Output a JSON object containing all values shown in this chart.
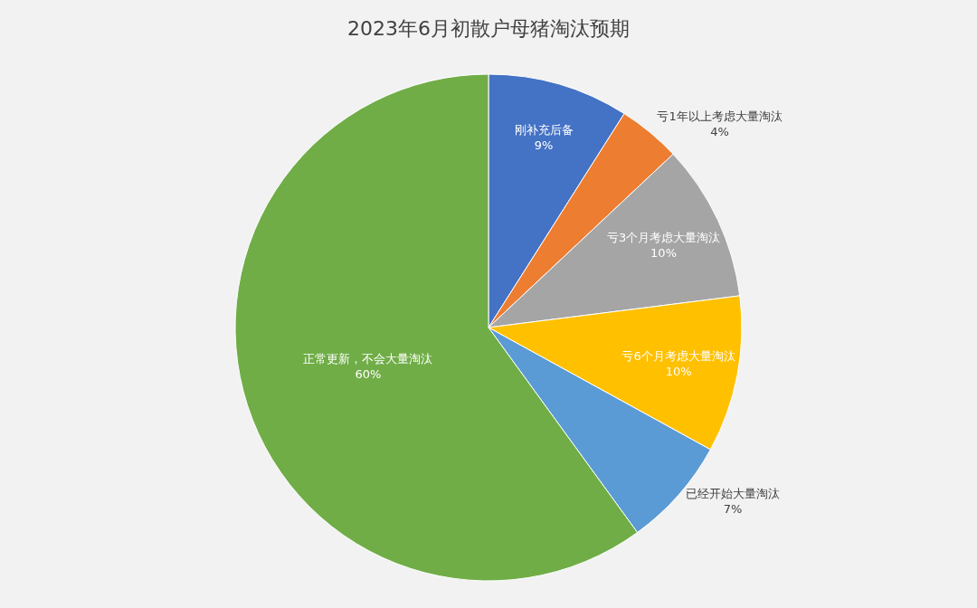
{
  "chart_data": {
    "type": "pie",
    "title": "2023年6月初散户母猪淘汰预期",
    "categories": [
      "刚补充后备",
      "亏1年以上考虑大量淘汰",
      "亏3个月考虑大量淘汰",
      "亏6个月考虑大量淘汰",
      "已经开始大量淘汰",
      "正常更新，不会大量淘汰"
    ],
    "values": [
      9,
      4,
      10,
      10,
      7,
      60
    ],
    "colors": [
      "#4472c4",
      "#ed7d31",
      "#a5a5a5",
      "#ffc000",
      "#5b9bd5",
      "#70ad47"
    ],
    "value_labels": [
      "9%",
      "4%",
      "10%",
      "10%",
      "7%",
      "60%"
    ],
    "legend": false
  }
}
